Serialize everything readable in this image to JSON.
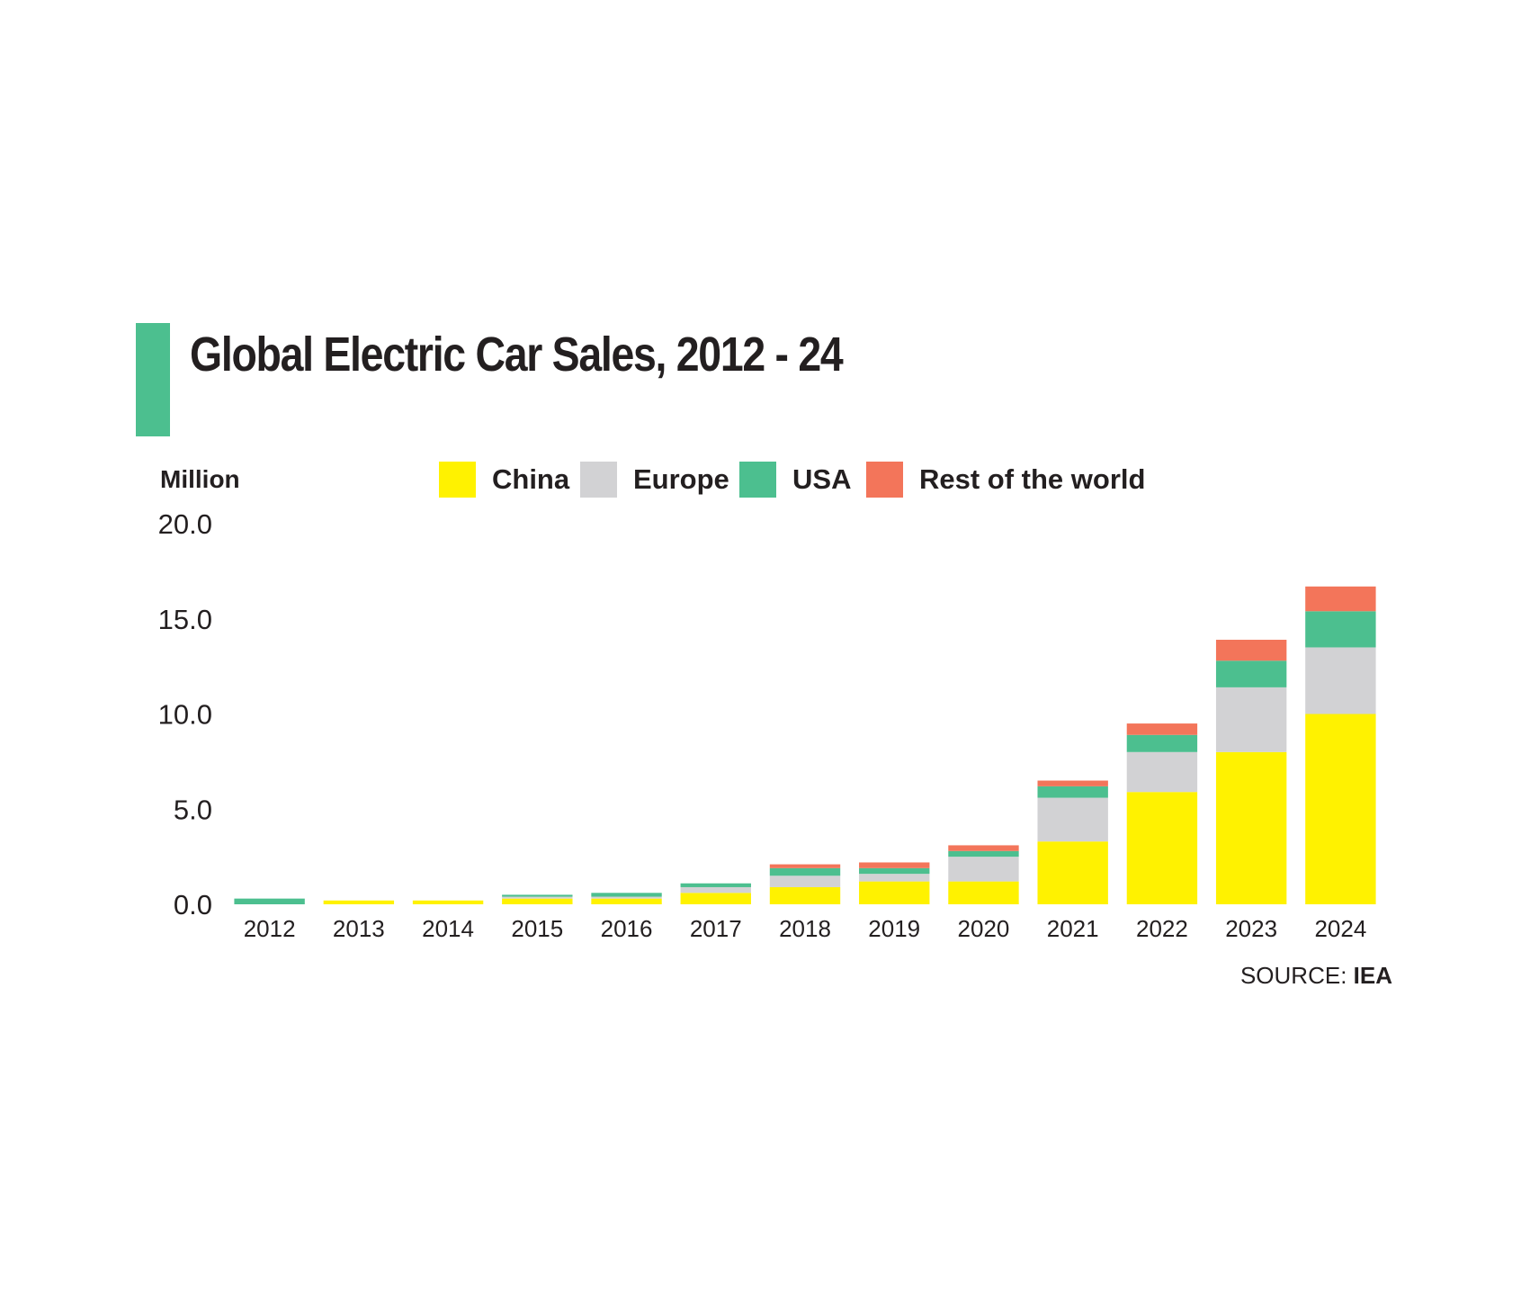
{
  "title": "Global Electric Car Sales, 2012 - 24",
  "colors": {
    "accent": "#4cbf8f",
    "text": "#231f20"
  },
  "source": {
    "label": "SOURCE:",
    "value": "IEA"
  },
  "chart_data": {
    "type": "bar",
    "stacked": true,
    "ylabel": "Million",
    "ylim": [
      0,
      20
    ],
    "yticks": [
      "0.0",
      "5.0",
      "10.0",
      "15.0",
      "20.0"
    ],
    "ytick_values": [
      0,
      5,
      10,
      15,
      20
    ],
    "grid": false,
    "legend_position": "top",
    "categories": [
      "2012",
      "2013",
      "2014",
      "2015",
      "2016",
      "2017",
      "2018",
      "2019",
      "2020",
      "2021",
      "2022",
      "2023",
      "2024"
    ],
    "series": [
      {
        "name": "China",
        "color": "#fff200",
        "values": [
          0.0,
          0.2,
          0.2,
          0.3,
          0.3,
          0.6,
          0.9,
          1.2,
          1.2,
          3.3,
          5.9,
          8.0,
          10.0
        ]
      },
      {
        "name": "Europe",
        "color": "#d2d2d4",
        "values": [
          0.0,
          0.0,
          0.0,
          0.1,
          0.1,
          0.3,
          0.6,
          0.4,
          1.3,
          2.3,
          2.1,
          3.4,
          3.5
        ]
      },
      {
        "name": "USA",
        "color": "#4cbf8f",
        "values": [
          0.3,
          0.0,
          0.0,
          0.1,
          0.2,
          0.2,
          0.4,
          0.3,
          0.3,
          0.6,
          0.9,
          1.4,
          1.9
        ]
      },
      {
        "name": "Rest of the world",
        "color": "#f3755a",
        "values": [
          0.0,
          0.0,
          0.0,
          0.0,
          0.0,
          0.0,
          0.2,
          0.3,
          0.3,
          0.3,
          0.6,
          1.1,
          1.3
        ]
      }
    ]
  }
}
